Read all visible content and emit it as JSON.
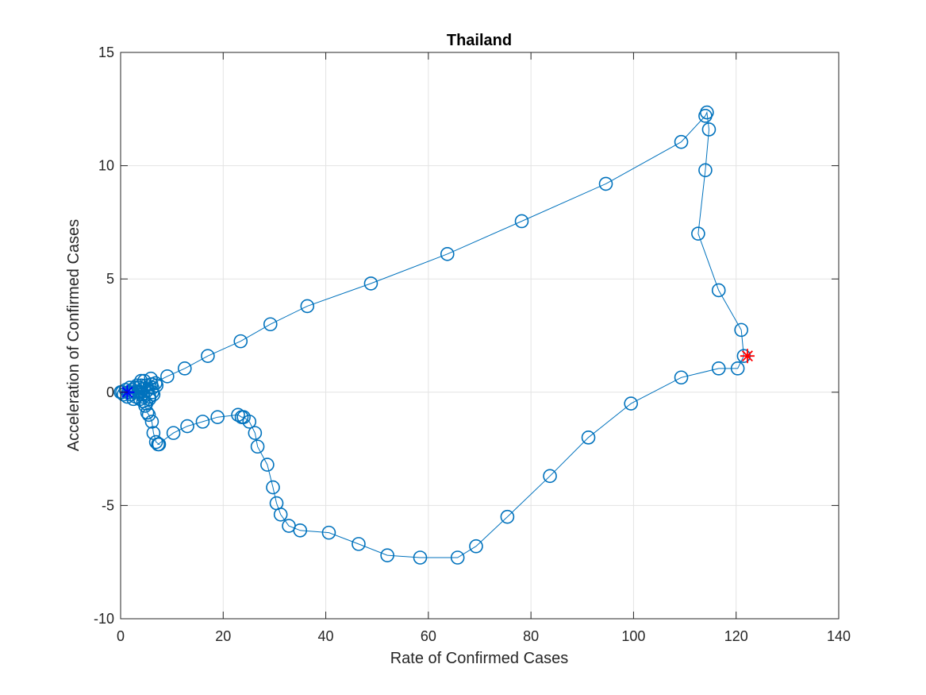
{
  "chart_data": {
    "type": "line",
    "title": "Thailand",
    "xlabel": "Rate of Confirmed Cases",
    "ylabel": "Acceleration of Confirmed Cases",
    "xlim": [
      0,
      140
    ],
    "ylim": [
      -10,
      15
    ],
    "xticks": [
      0,
      20,
      40,
      60,
      80,
      100,
      120,
      140
    ],
    "yticks": [
      -10,
      -5,
      0,
      5,
      10,
      15
    ],
    "grid": true,
    "box": true,
    "colors": {
      "line": "#0072BD",
      "start_marker": "#0000FF",
      "end_marker": "#FF0000",
      "axis": "#262626",
      "grid": "#E3E3E3"
    },
    "series": [
      {
        "marker": "circle",
        "x": [
          0.0,
          0.3,
          0.6,
          1.0,
          1.3,
          1.5,
          1.8,
          2.0,
          2.2,
          2.5,
          2.8,
          3.0,
          3.2,
          3.5,
          3.8,
          4.0,
          4.3,
          4.6,
          5.0,
          5.3,
          5.6,
          5.9,
          6.2,
          6.4,
          6.8,
          7.0,
          6.2,
          5.6,
          5.0,
          4.4,
          3.8,
          3.6,
          4.0,
          4.4,
          4.8,
          5.2,
          5.5,
          6.1,
          6.4,
          6.9,
          7.5,
          7.3,
          10.3,
          13.0,
          16.0,
          18.9,
          22.9,
          23.6,
          24.0,
          25.1,
          26.2,
          26.7,
          28.6,
          29.7,
          30.4,
          31.2,
          32.8,
          35.0,
          40.6,
          46.4,
          52.0,
          58.4,
          65.7,
          69.3,
          75.4,
          83.7,
          91.2,
          99.5,
          109.3,
          116.6,
          120.3,
          121.5,
          121.0,
          116.6,
          112.6,
          114.0,
          114.7,
          114.3,
          114.0,
          109.3,
          94.6,
          78.2,
          63.7,
          48.8,
          36.4,
          29.2,
          23.4,
          17.0,
          12.5,
          9.1,
          6.0,
          4.5,
          3.5,
          2.5,
          1.6
        ],
        "y": [
          0.0,
          0.0,
          -0.1,
          0.1,
          -0.2,
          0.0,
          0.2,
          -0.1,
          0.1,
          -0.3,
          0.2,
          -0.2,
          0.3,
          0.0,
          -0.3,
          0.3,
          -0.1,
          0.5,
          0.3,
          0.1,
          -0.2,
          0.6,
          0.2,
          -0.1,
          0.4,
          0.3,
          0.0,
          -0.3,
          -0.5,
          -0.2,
          0.0,
          0.2,
          0.5,
          -0.4,
          -0.6,
          -0.9,
          -1.0,
          -1.3,
          -1.8,
          -2.2,
          -2.3,
          -2.3,
          -1.8,
          -1.5,
          -1.3,
          -1.1,
          -1.0,
          -1.1,
          -1.1,
          -1.3,
          -1.8,
          -2.4,
          -3.2,
          -4.2,
          -4.9,
          -5.4,
          -5.9,
          -6.1,
          -6.2,
          -6.7,
          -7.2,
          -7.3,
          -7.3,
          -6.8,
          -5.5,
          -3.7,
          -2.0,
          -0.5,
          0.65,
          1.05,
          1.05,
          1.6,
          2.75,
          4.5,
          7.0,
          9.8,
          11.6,
          12.35,
          12.2,
          11.05,
          9.2,
          7.55,
          6.1,
          4.8,
          3.8,
          3.0,
          2.25,
          1.6,
          1.05,
          0.7,
          0.35,
          0.15,
          0.05,
          0.0,
          0.0
        ]
      }
    ],
    "start_point": {
      "x": 1.3,
      "y": 0.0,
      "marker": "asterisk"
    },
    "end_point": {
      "x": 122.2,
      "y": 1.6,
      "marker": "asterisk"
    }
  }
}
